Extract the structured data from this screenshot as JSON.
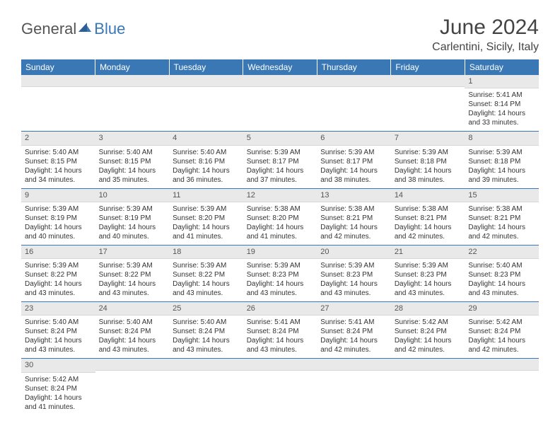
{
  "logo": {
    "part1": "General",
    "part2": "Blue"
  },
  "title": "June 2024",
  "location": "Carlentini, Sicily, Italy",
  "colors": {
    "header_bg": "#3a78b5",
    "header_text": "#ffffff",
    "daynum_bg": "#e9e9e9",
    "border": "#3a78b5",
    "logo_gray": "#555555",
    "logo_blue": "#3a78b5"
  },
  "fonts": {
    "title_size_pt": 22,
    "location_size_pt": 12,
    "dayheader_size_pt": 9,
    "body_size_pt": 7.5
  },
  "day_headers": [
    "Sunday",
    "Monday",
    "Tuesday",
    "Wednesday",
    "Thursday",
    "Friday",
    "Saturday"
  ],
  "weeks": [
    [
      null,
      null,
      null,
      null,
      null,
      null,
      {
        "d": "1",
        "sr": "Sunrise: 5:41 AM",
        "ss": "Sunset: 8:14 PM",
        "dl1": "Daylight: 14 hours",
        "dl2": "and 33 minutes."
      }
    ],
    [
      {
        "d": "2",
        "sr": "Sunrise: 5:40 AM",
        "ss": "Sunset: 8:15 PM",
        "dl1": "Daylight: 14 hours",
        "dl2": "and 34 minutes."
      },
      {
        "d": "3",
        "sr": "Sunrise: 5:40 AM",
        "ss": "Sunset: 8:15 PM",
        "dl1": "Daylight: 14 hours",
        "dl2": "and 35 minutes."
      },
      {
        "d": "4",
        "sr": "Sunrise: 5:40 AM",
        "ss": "Sunset: 8:16 PM",
        "dl1": "Daylight: 14 hours",
        "dl2": "and 36 minutes."
      },
      {
        "d": "5",
        "sr": "Sunrise: 5:39 AM",
        "ss": "Sunset: 8:17 PM",
        "dl1": "Daylight: 14 hours",
        "dl2": "and 37 minutes."
      },
      {
        "d": "6",
        "sr": "Sunrise: 5:39 AM",
        "ss": "Sunset: 8:17 PM",
        "dl1": "Daylight: 14 hours",
        "dl2": "and 38 minutes."
      },
      {
        "d": "7",
        "sr": "Sunrise: 5:39 AM",
        "ss": "Sunset: 8:18 PM",
        "dl1": "Daylight: 14 hours",
        "dl2": "and 38 minutes."
      },
      {
        "d": "8",
        "sr": "Sunrise: 5:39 AM",
        "ss": "Sunset: 8:18 PM",
        "dl1": "Daylight: 14 hours",
        "dl2": "and 39 minutes."
      }
    ],
    [
      {
        "d": "9",
        "sr": "Sunrise: 5:39 AM",
        "ss": "Sunset: 8:19 PM",
        "dl1": "Daylight: 14 hours",
        "dl2": "and 40 minutes."
      },
      {
        "d": "10",
        "sr": "Sunrise: 5:39 AM",
        "ss": "Sunset: 8:19 PM",
        "dl1": "Daylight: 14 hours",
        "dl2": "and 40 minutes."
      },
      {
        "d": "11",
        "sr": "Sunrise: 5:39 AM",
        "ss": "Sunset: 8:20 PM",
        "dl1": "Daylight: 14 hours",
        "dl2": "and 41 minutes."
      },
      {
        "d": "12",
        "sr": "Sunrise: 5:38 AM",
        "ss": "Sunset: 8:20 PM",
        "dl1": "Daylight: 14 hours",
        "dl2": "and 41 minutes."
      },
      {
        "d": "13",
        "sr": "Sunrise: 5:38 AM",
        "ss": "Sunset: 8:21 PM",
        "dl1": "Daylight: 14 hours",
        "dl2": "and 42 minutes."
      },
      {
        "d": "14",
        "sr": "Sunrise: 5:38 AM",
        "ss": "Sunset: 8:21 PM",
        "dl1": "Daylight: 14 hours",
        "dl2": "and 42 minutes."
      },
      {
        "d": "15",
        "sr": "Sunrise: 5:38 AM",
        "ss": "Sunset: 8:21 PM",
        "dl1": "Daylight: 14 hours",
        "dl2": "and 42 minutes."
      }
    ],
    [
      {
        "d": "16",
        "sr": "Sunrise: 5:39 AM",
        "ss": "Sunset: 8:22 PM",
        "dl1": "Daylight: 14 hours",
        "dl2": "and 43 minutes."
      },
      {
        "d": "17",
        "sr": "Sunrise: 5:39 AM",
        "ss": "Sunset: 8:22 PM",
        "dl1": "Daylight: 14 hours",
        "dl2": "and 43 minutes."
      },
      {
        "d": "18",
        "sr": "Sunrise: 5:39 AM",
        "ss": "Sunset: 8:22 PM",
        "dl1": "Daylight: 14 hours",
        "dl2": "and 43 minutes."
      },
      {
        "d": "19",
        "sr": "Sunrise: 5:39 AM",
        "ss": "Sunset: 8:23 PM",
        "dl1": "Daylight: 14 hours",
        "dl2": "and 43 minutes."
      },
      {
        "d": "20",
        "sr": "Sunrise: 5:39 AM",
        "ss": "Sunset: 8:23 PM",
        "dl1": "Daylight: 14 hours",
        "dl2": "and 43 minutes."
      },
      {
        "d": "21",
        "sr": "Sunrise: 5:39 AM",
        "ss": "Sunset: 8:23 PM",
        "dl1": "Daylight: 14 hours",
        "dl2": "and 43 minutes."
      },
      {
        "d": "22",
        "sr": "Sunrise: 5:40 AM",
        "ss": "Sunset: 8:23 PM",
        "dl1": "Daylight: 14 hours",
        "dl2": "and 43 minutes."
      }
    ],
    [
      {
        "d": "23",
        "sr": "Sunrise: 5:40 AM",
        "ss": "Sunset: 8:24 PM",
        "dl1": "Daylight: 14 hours",
        "dl2": "and 43 minutes."
      },
      {
        "d": "24",
        "sr": "Sunrise: 5:40 AM",
        "ss": "Sunset: 8:24 PM",
        "dl1": "Daylight: 14 hours",
        "dl2": "and 43 minutes."
      },
      {
        "d": "25",
        "sr": "Sunrise: 5:40 AM",
        "ss": "Sunset: 8:24 PM",
        "dl1": "Daylight: 14 hours",
        "dl2": "and 43 minutes."
      },
      {
        "d": "26",
        "sr": "Sunrise: 5:41 AM",
        "ss": "Sunset: 8:24 PM",
        "dl1": "Daylight: 14 hours",
        "dl2": "and 43 minutes."
      },
      {
        "d": "27",
        "sr": "Sunrise: 5:41 AM",
        "ss": "Sunset: 8:24 PM",
        "dl1": "Daylight: 14 hours",
        "dl2": "and 42 minutes."
      },
      {
        "d": "28",
        "sr": "Sunrise: 5:42 AM",
        "ss": "Sunset: 8:24 PM",
        "dl1": "Daylight: 14 hours",
        "dl2": "and 42 minutes."
      },
      {
        "d": "29",
        "sr": "Sunrise: 5:42 AM",
        "ss": "Sunset: 8:24 PM",
        "dl1": "Daylight: 14 hours",
        "dl2": "and 42 minutes."
      }
    ],
    [
      {
        "d": "30",
        "sr": "Sunrise: 5:42 AM",
        "ss": "Sunset: 8:24 PM",
        "dl1": "Daylight: 14 hours",
        "dl2": "and 41 minutes."
      },
      null,
      null,
      null,
      null,
      null,
      null
    ]
  ]
}
